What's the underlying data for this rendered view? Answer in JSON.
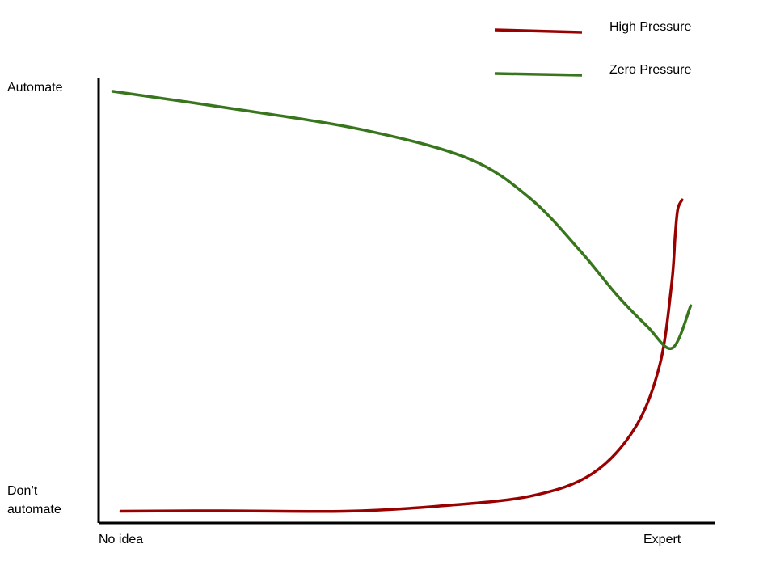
{
  "chart_data": {
    "type": "line",
    "title": "",
    "x_axis": {
      "label": "",
      "tick_labels": [
        "No idea",
        "Expert"
      ],
      "range": [
        0,
        1
      ]
    },
    "y_axis": {
      "label": "",
      "tick_labels": [
        "Don’t automate",
        "Automate"
      ],
      "tick_label_lines": {
        "bottom": [
          "Don’t",
          "automate"
        ],
        "top": "Automate"
      },
      "range": [
        0,
        1
      ]
    },
    "grid": false,
    "legend_position": "top-right",
    "series": [
      {
        "name": "High Pressure",
        "color": "#990000",
        "points": [
          [
            0.036,
            0.001
          ],
          [
            0.2,
            0.002
          ],
          [
            0.4,
            0.001
          ],
          [
            0.55,
            0.013
          ],
          [
            0.7,
            0.037
          ],
          [
            0.8,
            0.09
          ],
          [
            0.87,
            0.2
          ],
          [
            0.91,
            0.35
          ],
          [
            0.929,
            0.54
          ],
          [
            0.935,
            0.66
          ],
          [
            0.939,
            0.72
          ],
          [
            0.946,
            0.742
          ]
        ]
      },
      {
        "name": "Zero Pressure",
        "color": "#38761d",
        "points": [
          [
            0.023,
            1.0
          ],
          [
            0.23,
            0.956
          ],
          [
            0.43,
            0.908
          ],
          [
            0.6,
            0.84
          ],
          [
            0.7,
            0.745
          ],
          [
            0.78,
            0.622
          ],
          [
            0.84,
            0.516
          ],
          [
            0.89,
            0.44
          ],
          [
            0.93,
            0.389
          ],
          [
            0.96,
            0.49
          ]
        ]
      }
    ],
    "notes": ""
  }
}
